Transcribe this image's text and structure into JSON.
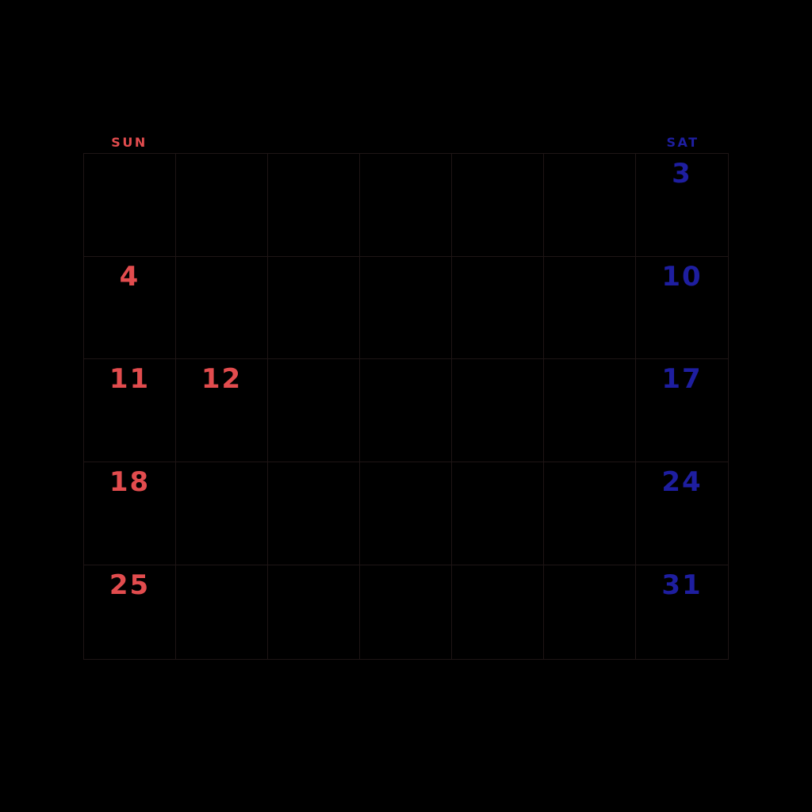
{
  "header": {
    "sun_label": "SUN",
    "sat_label": "SAT"
  },
  "colors": {
    "background": "#000000",
    "grid_line": "#1e1515",
    "sunday_red": "#e24c4e",
    "saturday_blue": "#1e1ea0"
  },
  "weeks": [
    [
      {},
      {},
      {},
      {},
      {},
      {},
      {
        "day": "3",
        "color": "blue"
      }
    ],
    [
      {
        "day": "4",
        "color": "red"
      },
      {},
      {},
      {},
      {},
      {},
      {
        "day": "10",
        "color": "blue"
      }
    ],
    [
      {
        "day": "11",
        "color": "red"
      },
      {
        "day": "12",
        "color": "red"
      },
      {},
      {},
      {},
      {},
      {
        "day": "17",
        "color": "blue"
      }
    ],
    [
      {
        "day": "18",
        "color": "red"
      },
      {},
      {},
      {},
      {},
      {},
      {
        "day": "24",
        "color": "blue"
      }
    ],
    [
      {
        "day": "25",
        "color": "red"
      },
      {},
      {},
      {},
      {},
      {},
      {
        "day": "31",
        "color": "blue"
      }
    ]
  ]
}
